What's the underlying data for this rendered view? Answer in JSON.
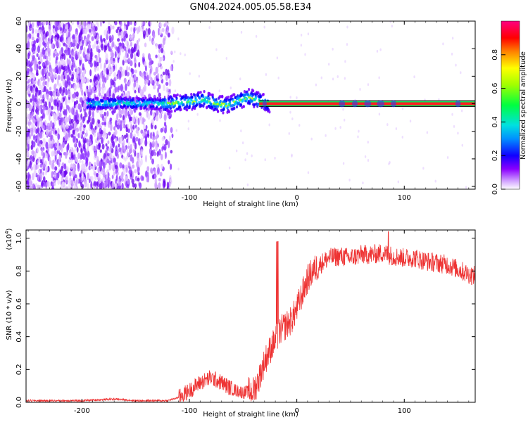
{
  "title": "GN04.2024.005.05.58.E34",
  "chart_data": [
    {
      "type": "heatmap",
      "xlabel": "Height of straight line (km)",
      "ylabel": "Frequency (Hz)",
      "xlim": [
        -252,
        166
      ],
      "ylim": [
        -62,
        60
      ],
      "xticks": [
        -200,
        -100,
        0,
        100
      ],
      "xtick_labels": [
        "-200",
        "-100",
        "0",
        "100"
      ],
      "yticks": [
        -60,
        -40,
        -20,
        0,
        20,
        40,
        60
      ],
      "ytick_labels": [
        "-60",
        "-40",
        "-20",
        "0",
        "20",
        "40",
        "60"
      ],
      "grid": false,
      "colorbar": {
        "label": "Normalized spectral amplitude",
        "range": [
          0,
          1
        ],
        "ticks": [
          0.0,
          0.2,
          0.4,
          0.6,
          0.8
        ],
        "tick_labels": [
          "0.0",
          "0.2",
          "0.4",
          "0.6",
          "0.8"
        ],
        "colormap": [
          "#ffffff",
          "#d9b3ff",
          "#7a00ff",
          "#0000ff",
          "#00c8ff",
          "#00ff60",
          "#a0ff00",
          "#ffff00",
          "#ff8000",
          "#ff0000",
          "#ff0080"
        ]
      },
      "description_series": {
        "noise_region_x": [
          -252,
          -125
        ],
        "signal_track": {
          "x": [
            -190,
            -160,
            -130,
            -110,
            -95,
            -85,
            -75,
            -65,
            -55,
            -45,
            -35,
            -25,
            0,
            50,
            100,
            166
          ],
          "y": [
            0,
            0.5,
            0,
            0.5,
            2,
            3,
            0,
            -1,
            2,
            5,
            2,
            0,
            0,
            0,
            0,
            0
          ]
        }
      }
    },
    {
      "type": "line",
      "xlabel": "Height of straight line (km)",
      "ylabel": "SNR (10 * v/v)",
      "multiplier": "(x10",
      "multiplier_exp": "4",
      "multiplier_close": ")",
      "xlim": [
        -252,
        166
      ],
      "ylim": [
        0,
        1.05
      ],
      "xticks": [
        -200,
        -100,
        0,
        100
      ],
      "xtick_labels": [
        "-200",
        "-100",
        "0",
        "100"
      ],
      "yticks": [
        0.0,
        0.2,
        0.4,
        0.6,
        0.8,
        1.0
      ],
      "ytick_labels": [
        "0.0",
        "0.2",
        "0.4",
        "0.6",
        "0.8",
        "1.0"
      ],
      "grid": false,
      "color": "#ee3333",
      "series": [
        {
          "x": [
            -252,
            -200,
            -170,
            -150,
            -120,
            -110,
            -100,
            -90,
            -80,
            -70,
            -60,
            -50,
            -40,
            -35,
            -30,
            -25,
            -20,
            -15,
            -10,
            -5,
            0,
            5,
            10,
            15,
            20,
            25,
            30,
            40,
            50,
            60,
            70,
            80,
            90,
            100,
            110,
            120,
            130,
            140,
            150,
            160,
            166
          ],
          "y": [
            0.01,
            0.01,
            0.02,
            0.01,
            0.01,
            0.03,
            0.07,
            0.12,
            0.15,
            0.12,
            0.08,
            0.06,
            0.07,
            0.15,
            0.25,
            0.32,
            0.38,
            0.44,
            0.47,
            0.5,
            0.57,
            0.66,
            0.75,
            0.8,
            0.83,
            0.86,
            0.88,
            0.89,
            0.88,
            0.9,
            0.9,
            0.91,
            0.89,
            0.88,
            0.88,
            0.86,
            0.85,
            0.84,
            0.81,
            0.78,
            0.77
          ]
        }
      ]
    }
  ]
}
